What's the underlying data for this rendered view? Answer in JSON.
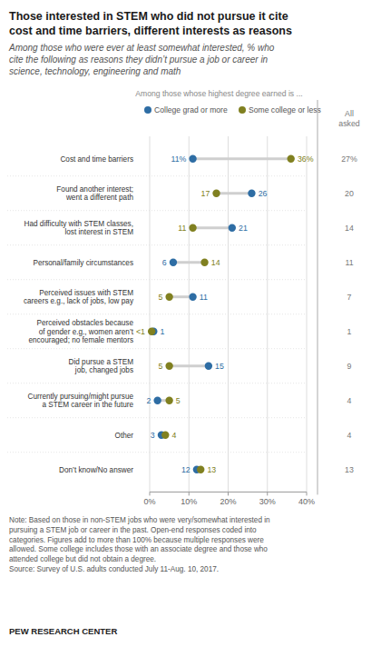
{
  "chart_data": {
    "type": "dumbbell",
    "orientation": "horizontal",
    "title": "Those interested in STEM who did not pursue it cite\ncost and time barriers, different interests as reasons",
    "subtitle": "Among those who were ever at least somewhat interested, % who\ncite the following as reasons they didn’t pursue a job or career in\nscience, technology, engineering and math",
    "legend_title": "Among those whose highest degree earned is ...",
    "categories": [
      "Cost and time barriers",
      "Found another interest;\nwent a different path",
      "Had difficulty with STEM classes,\nlost interest in STEM",
      "Personal/family circumstances",
      "Perceived issues with STEM\ncareers e.g., lack of jobs, low pay",
      "Perceived obstacles because\nof gender e.g., women aren’t\nencouraged; no female mentors",
      "Did pursue a STEM\njob, changed jobs",
      "Currently pursuing/might pursue\na STEM career in the future",
      "Other",
      "Don’t know/No answer"
    ],
    "series": [
      {
        "name": "College grad or more",
        "color": "#2e6da4",
        "marker": "circle",
        "values": [
          11,
          26,
          21,
          6,
          11,
          1,
          15,
          2,
          3,
          12
        ],
        "value_labels": [
          "11%",
          "26",
          "21",
          "6",
          "11",
          "1",
          "15",
          "2",
          "3",
          "12"
        ]
      },
      {
        "name": "Some college or less",
        "color": "#808020",
        "marker": "circle",
        "values": [
          36,
          17,
          11,
          14,
          5,
          0.5,
          5,
          5,
          4,
          13
        ],
        "value_labels": [
          "36%",
          "17",
          "11",
          "14",
          "5",
          "<1",
          "5",
          "5",
          "4",
          "13"
        ]
      }
    ],
    "all_asked": {
      "title": "All\nasked",
      "values": [
        27,
        20,
        14,
        11,
        7,
        1,
        9,
        4,
        4,
        13
      ],
      "value_labels": [
        "27%",
        "20",
        "14",
        "11",
        "7",
        "1",
        "9",
        "4",
        "4",
        "13"
      ]
    },
    "xlim": [
      0,
      40
    ],
    "xticks": [
      {
        "value": 0,
        "label": "0%"
      },
      {
        "value": 10,
        "label": "10%"
      },
      {
        "value": 20,
        "label": "20%"
      },
      {
        "value": 30,
        "label": "30%"
      },
      {
        "value": 40,
        "label": "40%"
      }
    ],
    "grid": true,
    "legend": "top",
    "data_labels": true,
    "note": "Note: Based on those in non-STEM jobs who were very/somewhat interested in\npursuing a STEM job or career in the past. Open-end responses coded into\ncategories. Figures add to more than 100% because multiple responses were\nallowed. Some college includes those with an associate degree and those who\nattended college but did not obtain a degree.\nSource: Survey of U.S. adults conducted July 11-Aug. 10, 2017.",
    "source": "PEW RESEARCH CENTER"
  }
}
